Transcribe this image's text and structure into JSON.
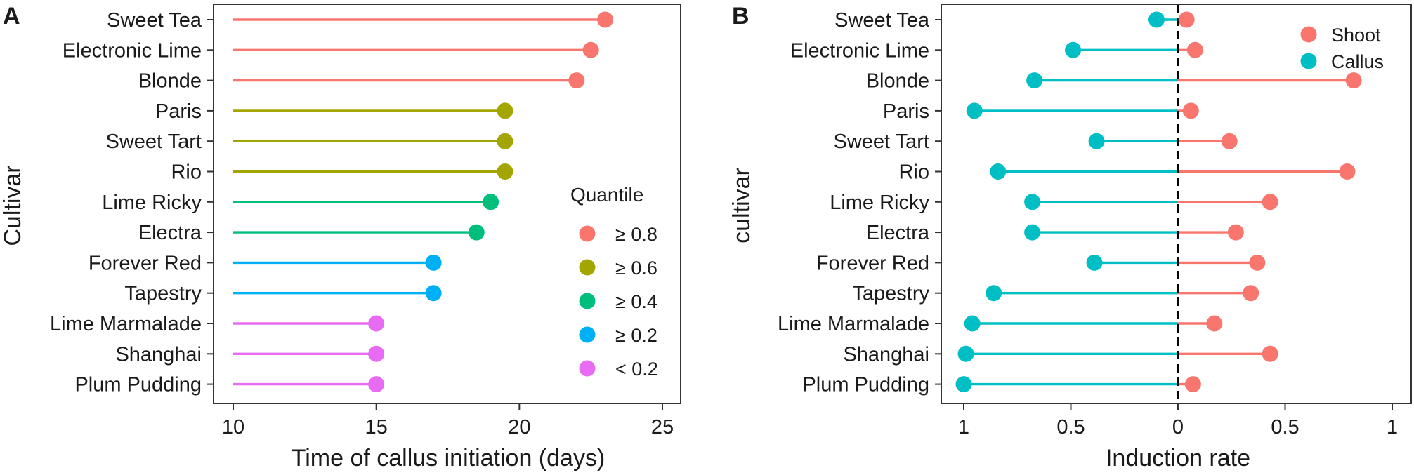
{
  "chart_data": [
    {
      "type": "lollipop",
      "panel_label": "A",
      "xlabel": "Time of callus initiation (days)",
      "ylabel": "Cultivar",
      "xlim": [
        10,
        25
      ],
      "baseline": 10,
      "x_ticks": [
        10,
        15,
        20,
        25
      ],
      "x_tick_labels": [
        "10",
        "15",
        "20",
        "25"
      ],
      "categories": [
        "Sweet Tea",
        "Electronic Lime",
        "Blonde",
        "Paris",
        "Sweet Tart",
        "Rio",
        "Lime Ricky",
        "Electra",
        "Forever Red",
        "Tapestry",
        "Lime Marmalade",
        "Shanghai",
        "Plum Pudding"
      ],
      "values": [
        23,
        22.5,
        22,
        19.5,
        19.5,
        19.5,
        19,
        18.5,
        17,
        17,
        15,
        15,
        15
      ],
      "quantile_group": [
        0,
        0,
        0,
        1,
        1,
        1,
        2,
        2,
        3,
        3,
        4,
        4,
        4
      ],
      "legend": {
        "title": "Quantile",
        "placement": "right",
        "entries": [
          {
            "label": "≥ 0.8",
            "color": "#F8766D"
          },
          {
            "label": "≥ 0.6",
            "color": "#A3A500"
          },
          {
            "label": "≥ 0.4",
            "color": "#00BF7D"
          },
          {
            "label": "≥ 0.2",
            "color": "#00B0F6"
          },
          {
            "label": "< 0.2",
            "color": "#E76BF3"
          }
        ]
      }
    },
    {
      "type": "diverging-lollipop",
      "panel_label": "B",
      "xlabel": "Induction rate",
      "ylabel": "cultivar",
      "xlim": [
        -1,
        1
      ],
      "x_ticks": [
        -1,
        -0.5,
        0,
        0.5,
        1
      ],
      "x_tick_labels": [
        "1",
        "0.5",
        "0",
        "0.5",
        "1"
      ],
      "reference_line": 0,
      "categories": [
        "Sweet Tea",
        "Electronic Lime",
        "Blonde",
        "Paris",
        "Sweet Tart",
        "Rio",
        "Lime Ricky",
        "Electra",
        "Forever Red",
        "Tapestry",
        "Lime Marmalade",
        "Shanghai",
        "Plum Pudding"
      ],
      "series": [
        {
          "name": "Shoot",
          "color": "#F8766D",
          "values": [
            0.04,
            0.08,
            0.82,
            0.06,
            0.24,
            0.79,
            0.43,
            0.27,
            0.37,
            0.34,
            0.17,
            0.43,
            0.07
          ]
        },
        {
          "name": "Callus",
          "color": "#00BFC4",
          "values": [
            -0.1,
            -0.49,
            -0.67,
            -0.95,
            -0.38,
            -0.84,
            -0.68,
            -0.68,
            -0.39,
            -0.86,
            -0.96,
            -0.99,
            -1.0
          ]
        }
      ],
      "legend": {
        "placement": "top-right"
      }
    }
  ]
}
